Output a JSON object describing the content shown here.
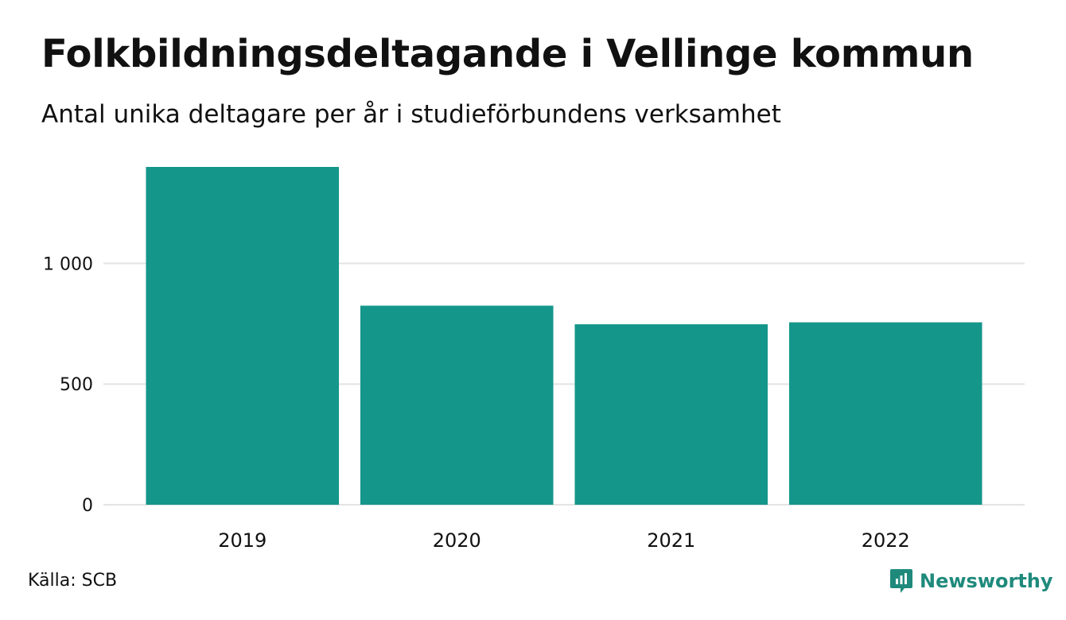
{
  "title": "Folkbildningsdeltagande i Vellinge kommun",
  "subtitle": "Antal unika deltagare per år i studieförbundens verksamhet",
  "source": "Källa: SCB",
  "brand": {
    "name": "Newsworthy",
    "icon": "newsworthy-logo-icon",
    "color": "#1f8a7c"
  },
  "colors": {
    "bar": "#15968a",
    "grid": "#e3e3e3",
    "text": "#111111"
  },
  "chart_data": {
    "type": "bar",
    "categories": [
      "2019",
      "2020",
      "2021",
      "2022"
    ],
    "values": [
      1400,
      825,
      748,
      756
    ],
    "ylim": [
      0,
      1400
    ],
    "yticks": [
      0,
      500,
      1000
    ],
    "ytick_labels": [
      "0",
      "500",
      "1 000"
    ],
    "grid": true,
    "xlabel": "",
    "ylabel": ""
  }
}
